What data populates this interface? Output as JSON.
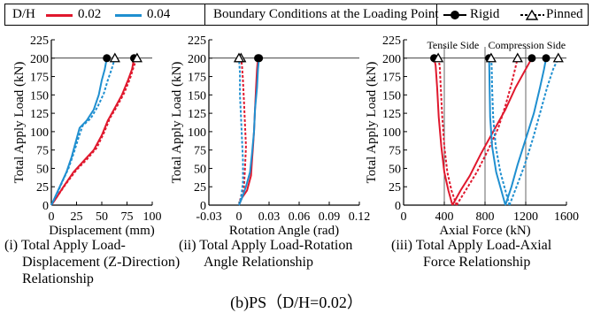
{
  "legend": {
    "dh_label": "D/H",
    "items": [
      {
        "label": "0.02",
        "color": "#e0182d"
      },
      {
        "label": "0.04",
        "color": "#1f8fd0"
      }
    ],
    "bc_label": "Boundary Conditions at the Loading Point",
    "markers": [
      {
        "label": "Rigid",
        "marker": "filled-circle",
        "line": "solid"
      },
      {
        "label": "Pinned",
        "marker": "open-triangle",
        "line": "dotted"
      }
    ]
  },
  "chart_data": [
    {
      "type": "line",
      "ylabel": "Total Apply Load (kN)",
      "xlabel": "Displacement (mm)",
      "xlim": [
        0,
        100
      ],
      "ylim": [
        0,
        225
      ],
      "xticks": [
        "0",
        "25",
        "50",
        "75",
        "100"
      ],
      "yticks": [
        "0",
        "25",
        "50",
        "75",
        "100",
        "125",
        "150",
        "175",
        "200",
        "225"
      ],
      "caption": [
        "(i) Total Apply Load-",
        "Displacement (Z-Direction)",
        "Relationship"
      ],
      "series": [
        {
          "name": "0.02",
          "style": "Rigid",
          "points": [
            [
              0,
              0
            ],
            [
              5,
              10
            ],
            [
              12,
              25
            ],
            [
              22,
              45
            ],
            [
              32,
              60
            ],
            [
              42,
              75
            ],
            [
              50,
              95
            ],
            [
              56,
              115
            ],
            [
              62,
              130
            ],
            [
              70,
              150
            ],
            [
              76,
              170
            ],
            [
              80,
              185
            ],
            [
              82,
              200
            ]
          ]
        },
        {
          "name": "0.02",
          "style": "Pinned",
          "points": [
            [
              0,
              0
            ],
            [
              6,
              12
            ],
            [
              14,
              28
            ],
            [
              25,
              48
            ],
            [
              35,
              62
            ],
            [
              45,
              78
            ],
            [
              52,
              98
            ],
            [
              58,
              118
            ],
            [
              64,
              132
            ],
            [
              72,
              152
            ],
            [
              78,
              172
            ],
            [
              82,
              190
            ],
            [
              85,
              200
            ]
          ]
        },
        {
          "name": "0.04",
          "style": "Rigid",
          "points": [
            [
              0,
              0
            ],
            [
              5,
              15
            ],
            [
              10,
              30
            ],
            [
              15,
              45
            ],
            [
              20,
              65
            ],
            [
              25,
              90
            ],
            [
              28,
              105
            ],
            [
              35,
              115
            ],
            [
              42,
              130
            ],
            [
              47,
              150
            ],
            [
              50,
              170
            ],
            [
              53,
              185
            ],
            [
              55,
              200
            ]
          ]
        },
        {
          "name": "0.04",
          "style": "Pinned",
          "points": [
            [
              0,
              0
            ],
            [
              6,
              16
            ],
            [
              11,
              32
            ],
            [
              17,
              50
            ],
            [
              22,
              70
            ],
            [
              27,
              92
            ],
            [
              31,
              108
            ],
            [
              39,
              118
            ],
            [
              46,
              134
            ],
            [
              52,
              152
            ],
            [
              56,
              170
            ],
            [
              60,
              186
            ],
            [
              63,
              200
            ]
          ]
        }
      ]
    },
    {
      "type": "line",
      "ylabel": "Total Apply Load (kN)",
      "xlabel": "Rotation Angle (rad)",
      "xlim": [
        -0.03,
        0.12
      ],
      "ylim": [
        0,
        225
      ],
      "xticks": [
        "-0.03",
        "0",
        "0.03",
        "0.06",
        "0.09",
        "0.12"
      ],
      "yticks": [
        "0",
        "25",
        "50",
        "75",
        "100",
        "125",
        "150",
        "175",
        "200",
        "225"
      ],
      "caption": [
        "(ii) Total Apply Load-Rotation",
        "Angle Relationship"
      ],
      "series": [
        {
          "name": "0.02",
          "style": "Rigid",
          "points": [
            [
              0,
              0
            ],
            [
              0.003,
              10
            ],
            [
              0.008,
              20
            ],
            [
              0.012,
              40
            ],
            [
              0.013,
              60
            ],
            [
              0.014,
              80
            ],
            [
              0.015,
              100
            ],
            [
              0.016,
              130
            ],
            [
              0.017,
              160
            ],
            [
              0.018,
              185
            ],
            [
              0.019,
              200
            ]
          ]
        },
        {
          "name": "0.02",
          "style": "Pinned",
          "points": [
            [
              0,
              0
            ],
            [
              0.002,
              12
            ],
            [
              0.005,
              25
            ],
            [
              0.006,
              50
            ],
            [
              0.007,
              80
            ],
            [
              0.006,
              110
            ],
            [
              0.005,
              140
            ],
            [
              0.004,
              170
            ],
            [
              0.003,
              190
            ],
            [
              0.002,
              200
            ]
          ]
        },
        {
          "name": "0.04",
          "style": "Rigid",
          "points": [
            [
              0,
              0
            ],
            [
              0.003,
              10
            ],
            [
              0.007,
              25
            ],
            [
              0.011,
              45
            ],
            [
              0.013,
              70
            ],
            [
              0.015,
              100
            ],
            [
              0.016,
              130
            ],
            [
              0.018,
              160
            ],
            [
              0.019,
              185
            ],
            [
              0.02,
              200
            ]
          ]
        },
        {
          "name": "0.04",
          "style": "Pinned",
          "points": [
            [
              0,
              0
            ],
            [
              0.002,
              10
            ],
            [
              0.004,
              30
            ],
            [
              0.004,
              60
            ],
            [
              0.003,
              90
            ],
            [
              0.002,
              120
            ],
            [
              0.001,
              150
            ],
            [
              0.001,
              180
            ],
            [
              0.0,
              200
            ]
          ]
        }
      ]
    },
    {
      "type": "line",
      "ylabel": "Total Apply Load (kN)",
      "xlabel": "Axial Force (kN)",
      "xlim": [
        0,
        1600
      ],
      "ylim": [
        0,
        225
      ],
      "xticks": [
        "0",
        "400",
        "800",
        "1200",
        "1600"
      ],
      "yticks": [
        "0",
        "25",
        "50",
        "75",
        "100",
        "125",
        "150",
        "175",
        "200",
        "225"
      ],
      "annotations": [
        "Tensile Side",
        "Compression Side"
      ],
      "caption": [
        "(iii) Total Apply Load-Axial",
        "Force Relationship"
      ],
      "series": [
        {
          "name": "0.02",
          "style": "Rigid",
          "points": [
            [
              480,
              0
            ],
            [
              440,
              20
            ],
            [
              400,
              45
            ],
            [
              370,
              80
            ],
            [
              345,
              120
            ],
            [
              330,
              160
            ],
            [
              315,
              190
            ],
            [
              300,
              200
            ]
          ]
        },
        {
          "name": "0.02",
          "style": "Rigid",
          "points": [
            [
              480,
              0
            ],
            [
              560,
              20
            ],
            [
              650,
              40
            ],
            [
              760,
              70
            ],
            [
              880,
              100
            ],
            [
              1000,
              130
            ],
            [
              1100,
              160
            ],
            [
              1200,
              185
            ],
            [
              1260,
              200
            ]
          ]
        },
        {
          "name": "0.02",
          "style": "Pinned",
          "points": [
            [
              520,
              0
            ],
            [
              470,
              20
            ],
            [
              430,
              45
            ],
            [
              400,
              80
            ],
            [
              380,
              120
            ],
            [
              365,
              160
            ],
            [
              355,
              190
            ],
            [
              340,
              200
            ]
          ]
        },
        {
          "name": "0.02",
          "style": "Pinned",
          "points": [
            [
              520,
              0
            ],
            [
              610,
              20
            ],
            [
              720,
              45
            ],
            [
              830,
              75
            ],
            [
              930,
              105
            ],
            [
              1000,
              135
            ],
            [
              1060,
              165
            ],
            [
              1100,
              188
            ],
            [
              1120,
              200
            ]
          ]
        },
        {
          "name": "0.04",
          "style": "Rigid",
          "points": [
            [
              1000,
              0
            ],
            [
              960,
              20
            ],
            [
              910,
              45
            ],
            [
              870,
              80
            ],
            [
              850,
              120
            ],
            [
              845,
              160
            ],
            [
              842,
              190
            ],
            [
              840,
              200
            ]
          ]
        },
        {
          "name": "0.04",
          "style": "Rigid",
          "points": [
            [
              1000,
              0
            ],
            [
              1060,
              25
            ],
            [
              1120,
              55
            ],
            [
              1200,
              90
            ],
            [
              1280,
              125
            ],
            [
              1340,
              160
            ],
            [
              1380,
              185
            ],
            [
              1400,
              200
            ]
          ]
        },
        {
          "name": "0.04",
          "style": "Pinned",
          "points": [
            [
              1040,
              0
            ],
            [
              1000,
              20
            ],
            [
              950,
              45
            ],
            [
              905,
              80
            ],
            [
              880,
              120
            ],
            [
              870,
              160
            ],
            [
              865,
              190
            ],
            [
              860,
              200
            ]
          ]
        },
        {
          "name": "0.04",
          "style": "Pinned",
          "points": [
            [
              1040,
              0
            ],
            [
              1110,
              25
            ],
            [
              1190,
              55
            ],
            [
              1270,
              90
            ],
            [
              1340,
              125
            ],
            [
              1410,
              160
            ],
            [
              1470,
              185
            ],
            [
              1520,
              200
            ]
          ]
        }
      ]
    }
  ],
  "bottom_caption": "(b)PS（D/H=0.02）"
}
